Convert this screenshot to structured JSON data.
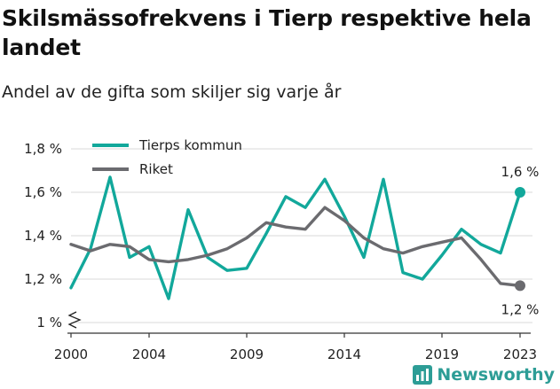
{
  "title": "Skilsmässofrekvens i Tierp respektive hela landet",
  "subtitle": "Andel av de gifta som skiljer sig varje år",
  "brand": "Newsworthy",
  "colors": {
    "tierp": "#12a89b",
    "riket": "#6b6b6f",
    "grid": "#d9d9d9",
    "brand": "#2d9d96"
  },
  "icons": {
    "brand": "newsworthy-logo-icon",
    "axis_break": "axis-break-icon"
  },
  "chart_data": {
    "type": "line",
    "title": "Skilsmässofrekvens i Tierp respektive hela landet",
    "subtitle": "Andel av de gifta som skiljer sig varje år",
    "xlabel": "",
    "ylabel": "",
    "x": [
      2000,
      2001,
      2002,
      2003,
      2004,
      2005,
      2006,
      2007,
      2008,
      2009,
      2010,
      2011,
      2012,
      2013,
      2014,
      2015,
      2016,
      2017,
      2018,
      2019,
      2020,
      2021,
      2022,
      2023
    ],
    "x_ticks": [
      2000,
      2004,
      2009,
      2014,
      2019,
      2023
    ],
    "x_tick_labels": [
      "2000",
      "2004",
      "2009",
      "2014",
      "2019",
      "2023"
    ],
    "ylim": [
      1.0,
      1.8
    ],
    "y_ticks": [
      1.0,
      1.2,
      1.4,
      1.6,
      1.8
    ],
    "y_tick_labels": [
      "1 %",
      "1,2 %",
      "1,4 %",
      "1,6 %",
      "1,8 %"
    ],
    "grid": true,
    "legend_position": "top-left",
    "series": [
      {
        "name": "Tierps kommun",
        "color": "#12a89b",
        "values": [
          1.16,
          1.34,
          1.67,
          1.3,
          1.35,
          1.11,
          1.52,
          1.3,
          1.24,
          1.25,
          1.41,
          1.58,
          1.53,
          1.66,
          1.49,
          1.3,
          1.66,
          1.23,
          1.2,
          1.31,
          1.43,
          1.36,
          1.32,
          1.6
        ],
        "end_label": "1,6 %"
      },
      {
        "name": "Riket",
        "color": "#6b6b6f",
        "values": [
          1.36,
          1.33,
          1.36,
          1.35,
          1.29,
          1.28,
          1.29,
          1.31,
          1.34,
          1.39,
          1.46,
          1.44,
          1.43,
          1.53,
          1.47,
          1.39,
          1.34,
          1.32,
          1.35,
          1.37,
          1.39,
          1.29,
          1.18,
          1.17
        ],
        "end_label": "1,2 %"
      }
    ]
  }
}
